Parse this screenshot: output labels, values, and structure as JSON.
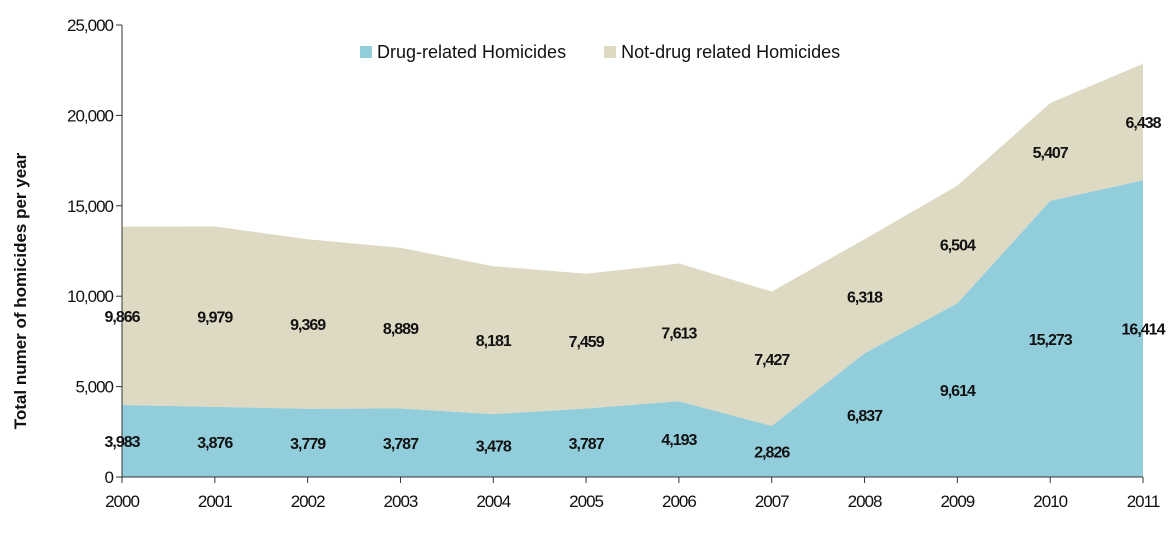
{
  "chart_data": {
    "type": "area",
    "stacked": true,
    "title": "",
    "xlabel": "",
    "ylabel": "Total numer  of homicides  per year",
    "ylim": [
      0,
      25000
    ],
    "yticks": [
      "0",
      "5,000",
      "10,000",
      "15,000",
      "20,000",
      "25,000"
    ],
    "ytick_values": [
      0,
      5000,
      10000,
      15000,
      20000,
      25000
    ],
    "x": [
      "2000",
      "2001",
      "2002",
      "2003",
      "2004",
      "2005",
      "2006",
      "2007",
      "2008",
      "2009",
      "2010",
      "2011"
    ],
    "legend_position": "top-center",
    "grid": false,
    "series": [
      {
        "name": "Drug-related Homicides",
        "color": "#92cddc",
        "values": [
          3983,
          3876,
          3779,
          3787,
          3478,
          3787,
          4193,
          2826,
          6837,
          9614,
          15273,
          16414
        ],
        "value_labels": [
          "3,983",
          "3,876",
          "3,779",
          "3,787",
          "3,478",
          "3,787",
          "4,193",
          "2,826",
          "6,837",
          "9,614",
          "15,273",
          "16,414"
        ]
      },
      {
        "name": "Not-drug related Homicides",
        "color": "#ddd9c3",
        "values": [
          9866,
          9979,
          9369,
          8889,
          8181,
          7459,
          7613,
          7427,
          6318,
          6504,
          5407,
          6438
        ],
        "value_labels": [
          "9,866",
          "9,979",
          "9,369",
          "8,889",
          "8,181",
          "7,459",
          "7,613",
          "7,427",
          "6,318",
          "6,504",
          "5,407",
          "6,438"
        ]
      }
    ]
  }
}
